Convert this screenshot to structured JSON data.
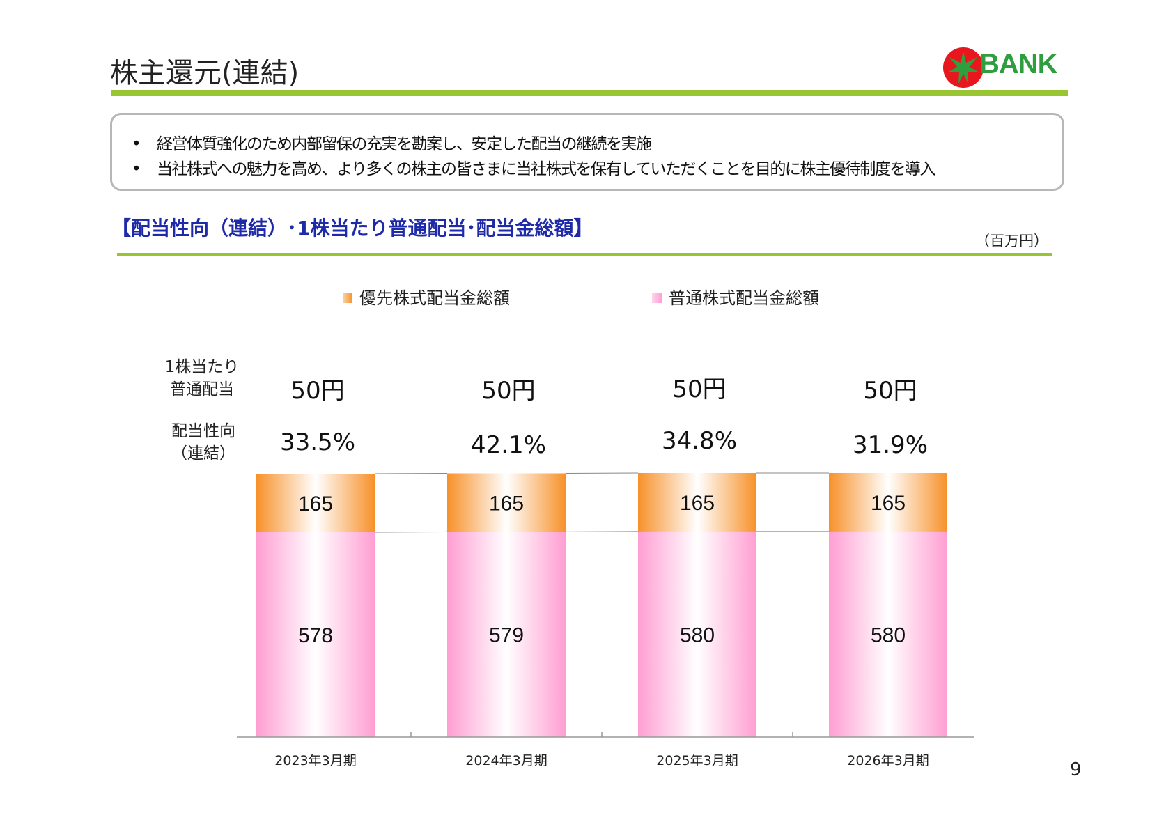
{
  "page": {
    "title": "株主還元(連結)",
    "logo_text": "BANK",
    "bullets": [
      "経営体質強化のため内部留保の充実を勘案し、安定した配当の継続を実施",
      "当社株式への魅力を高め、より多くの株主の皆さまに当社株式を保有していただくことを目的に株主優待制度を導入"
    ],
    "bullet_symbol": "•",
    "section_heading": "【配当性向（連結）･1株当たり普通配当･配当金総額】",
    "unit": "（百万円）",
    "row_labels": {
      "dividend_per_share": [
        "1株当たり",
        "普通配当"
      ],
      "payout_ratio": [
        "配当性向",
        "（連結）"
      ]
    },
    "page_number": "9"
  },
  "chart_data": {
    "type": "bar",
    "stacked": true,
    "categories": [
      "2023年3月期",
      "2024年3月期",
      "2025年3月期",
      "2026年3月期"
    ],
    "series": [
      {
        "name": "普通株式配当金総額",
        "values": [
          578,
          579,
          580,
          580
        ],
        "color": "#ff9ed2"
      },
      {
        "name": "優先株式配当金総額",
        "values": [
          165,
          165,
          165,
          165
        ],
        "color": "#f7912a"
      }
    ],
    "dividend_per_share": [
      "50円",
      "50円",
      "50円",
      "50円"
    ],
    "payout_ratio": [
      "33.5%",
      "42.1%",
      "34.8%",
      "31.9%"
    ],
    "legend": [
      "優先株式配当金総額",
      "普通株式配当金総額"
    ],
    "legend_position": "top",
    "ylim": [
      0,
      743
    ],
    "grid": false,
    "accent_colors": {
      "title_rule": "#9ac532",
      "heading": "#1f2aa8",
      "logo_star": "#e8161d",
      "logo_text": "#2e9e3e"
    }
  }
}
